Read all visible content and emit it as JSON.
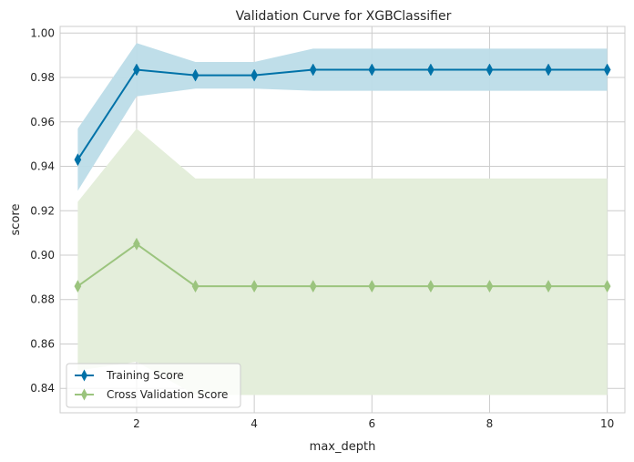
{
  "chart_data": {
    "type": "line",
    "title": "Validation Curve for XGBClassifier",
    "xlabel": "max_depth",
    "ylabel": "score",
    "xlim": [
      0.7,
      10.3
    ],
    "ylim": [
      0.829,
      1.003
    ],
    "x": [
      1,
      2,
      3,
      4,
      5,
      6,
      7,
      8,
      9,
      10
    ],
    "x_ticks": [
      2,
      4,
      6,
      8,
      10
    ],
    "y_ticks": [
      0.84,
      0.86,
      0.88,
      0.9,
      0.92,
      0.94,
      0.96,
      0.98,
      1.0
    ],
    "y_tick_labels": [
      "0.84",
      "0.86",
      "0.88",
      "0.90",
      "0.92",
      "0.94",
      "0.96",
      "0.98",
      "1.00"
    ],
    "grid": true,
    "legend_position": "bottom-left",
    "series": [
      {
        "name": "Training Score",
        "color": "#0072a8",
        "band_color": "#bcdce8",
        "marker": "diamond",
        "values": [
          0.943,
          0.9835,
          0.981,
          0.981,
          0.9835,
          0.9835,
          0.9835,
          0.9835,
          0.9835,
          0.9835
        ],
        "band_upper": [
          0.957,
          0.9955,
          0.987,
          0.987,
          0.993,
          0.993,
          0.993,
          0.993,
          0.993,
          0.993
        ],
        "band_lower": [
          0.929,
          0.9715,
          0.975,
          0.975,
          0.974,
          0.974,
          0.974,
          0.974,
          0.974,
          0.974
        ]
      },
      {
        "name": "Cross Validation Score",
        "color": "#9bc47e",
        "band_color": "#e4eedb",
        "marker": "diamond",
        "values": [
          0.886,
          0.905,
          0.886,
          0.886,
          0.886,
          0.886,
          0.886,
          0.886,
          0.886,
          0.886
        ],
        "band_upper": [
          0.924,
          0.957,
          0.9345,
          0.9345,
          0.9345,
          0.9345,
          0.9345,
          0.9345,
          0.9345,
          0.9345
        ],
        "band_lower": [
          0.848,
          0.852,
          0.837,
          0.837,
          0.837,
          0.837,
          0.837,
          0.837,
          0.837,
          0.837
        ]
      }
    ]
  }
}
